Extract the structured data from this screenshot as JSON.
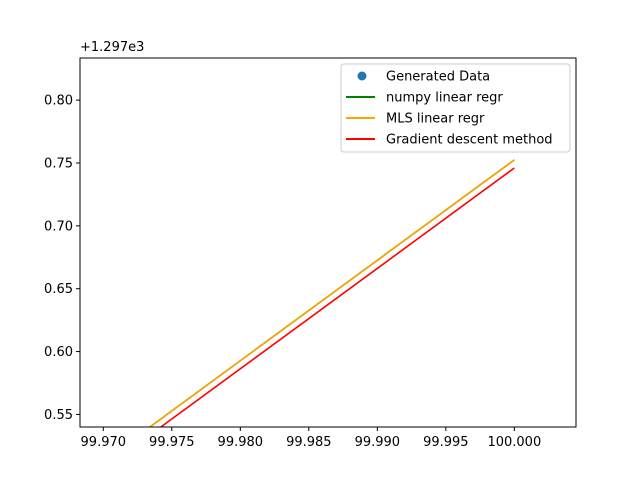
{
  "chart_data": {
    "type": "line",
    "title": "",
    "xlabel": "",
    "ylabel": "",
    "y_offset_label": "+1.297e3",
    "xlim": [
      99.9683,
      100.0045
    ],
    "ylim": [
      0.54,
      0.8335
    ],
    "x_ticks": [
      99.97,
      99.975,
      99.98,
      99.985,
      99.99,
      99.995,
      100.0
    ],
    "x_tick_labels": [
      "99.970",
      "99.975",
      "99.980",
      "99.985",
      "99.990",
      "99.995",
      "100.000"
    ],
    "y_ticks": [
      0.55,
      0.6,
      0.65,
      0.7,
      0.75,
      0.8
    ],
    "y_tick_labels": [
      "0.55",
      "0.60",
      "0.65",
      "0.70",
      "0.75",
      "0.80"
    ],
    "grid": false,
    "legend_position": "top-right",
    "series": [
      {
        "name": "Generated Data",
        "kind": "scatter",
        "color": "#1f77b4",
        "points": []
      },
      {
        "name": "numpy linear regr",
        "kind": "line",
        "color": "#008000",
        "points": [
          [
            99.9734,
            0.54
          ],
          [
            100.0,
            0.7525
          ]
        ]
      },
      {
        "name": "MLS linear regr",
        "kind": "line",
        "color": "#ffa500",
        "points": [
          [
            99.9734,
            0.54
          ],
          [
            100.0,
            0.7525
          ]
        ]
      },
      {
        "name": "Gradient descent method",
        "kind": "line",
        "color": "#ff0000",
        "points": [
          [
            99.9742,
            0.54
          ],
          [
            100.0,
            0.746
          ]
        ]
      }
    ]
  }
}
